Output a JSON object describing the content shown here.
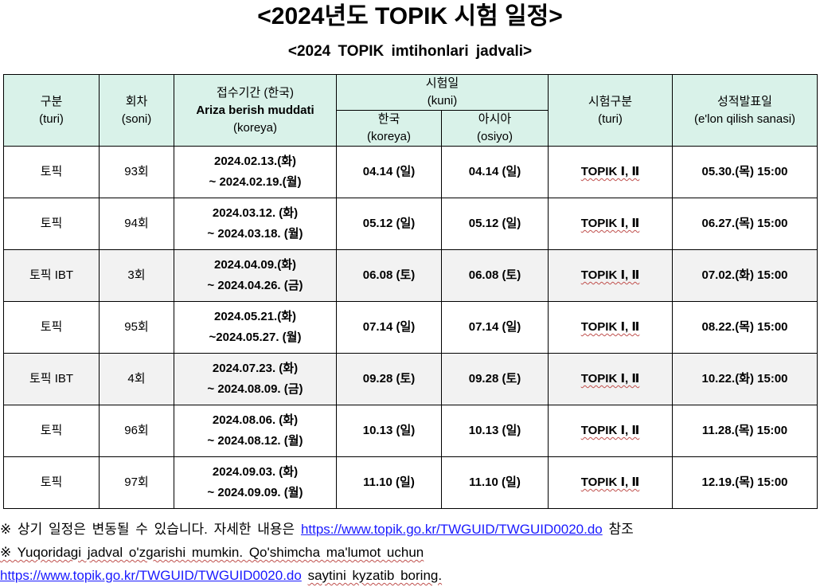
{
  "title": "<2024년도 TOPIK 시험 일정>",
  "subtitle": "<2024 TOPIK imtihonlari jadvali>",
  "header": {
    "category": [
      "구분",
      "(turi)"
    ],
    "round": [
      "회차",
      "(soni)"
    ],
    "application": [
      "접수기간 (한국)",
      "Ariza berish muddati",
      "(koreya)"
    ],
    "exam_date": [
      "시험일",
      "(kuni)"
    ],
    "korea": [
      "한국",
      "(koreya)"
    ],
    "asia": [
      "아시아",
      "(osiyo)"
    ],
    "exam_type": [
      "시험구분",
      "(turi)"
    ],
    "result_date": [
      "성적발표일",
      "(e'lon qilish sanasi)"
    ]
  },
  "rows": [
    {
      "category": "토픽",
      "round": "93회",
      "app_start": "2024.02.13.(화)",
      "app_end": "~  2024.02.19.(월)",
      "korea": "04.14 (일)",
      "asia": "04.14 (일)",
      "type": "TOPIK Ⅰ, Ⅱ",
      "result": "05.30.(목) 15:00",
      "shaded": false
    },
    {
      "category": "토픽",
      "round": "94회",
      "app_start": "2024.03.12. (화)",
      "app_end": "~  2024.03.18. (월)",
      "korea": "05.12 (일)",
      "asia": "05.12 (일)",
      "type": "TOPIK Ⅰ, Ⅱ",
      "result": "06.27.(목) 15:00",
      "shaded": false
    },
    {
      "category": "토픽 IBT",
      "round": "3회",
      "app_start": "2024.04.09.(화)",
      "app_end": "~  2024.04.26. (금)",
      "korea": "06.08 (토)",
      "asia": "06.08 (토)",
      "type": "TOPIK Ⅰ, Ⅱ",
      "result": "07.02.(화) 15:00",
      "shaded": true
    },
    {
      "category": "토픽",
      "round": "95회",
      "app_start": "2024.05.21.(화)",
      "app_end": "~2024.05.27. (월)",
      "korea": "07.14 (일)",
      "asia": "07.14 (일)",
      "type": "TOPIK Ⅰ, Ⅱ",
      "result": "08.22.(목) 15:00",
      "shaded": false
    },
    {
      "category": "토픽 IBT",
      "round": "4회",
      "app_start": "2024.07.23. (화)",
      "app_end": "~  2024.08.09. (금)",
      "korea": "09.28 (토)",
      "asia": "09.28 (토)",
      "type": "TOPIK Ⅰ, Ⅱ",
      "result": "10.22.(화) 15:00",
      "shaded": true
    },
    {
      "category": "토픽",
      "round": "96회",
      "app_start": "2024.08.06. (화)",
      "app_end": "~  2024.08.12. (월)",
      "korea": "10.13 (일)",
      "asia": "10.13 (일)",
      "type": "TOPIK Ⅰ, Ⅱ",
      "result": "11.28.(목) 15:00",
      "shaded": false
    },
    {
      "category": "토픽",
      "round": "97회",
      "app_start": "2024.09.03. (화)",
      "app_end": "~  2024.09.09. (월)",
      "korea": "11.10 (일)",
      "asia": "11.10 (일)",
      "type": "TOPIK Ⅰ, Ⅱ",
      "result": "12.19.(목) 15:00",
      "shaded": false
    }
  ],
  "notes": {
    "line1_text": "※ 상기 일정은 변동될 수 있습니다. 자세한 내용은",
    "link": "https://www.topik.go.kr/TWGUID/TWGUID0020.do",
    "line1_suffix": "참조",
    "line2_text": "※ Yuqoridagi jadval o'zgarishi mumkin.  Qo'shimcha ma'lumot uchun",
    "line3_suffix": "saytini kyzatib boring."
  }
}
